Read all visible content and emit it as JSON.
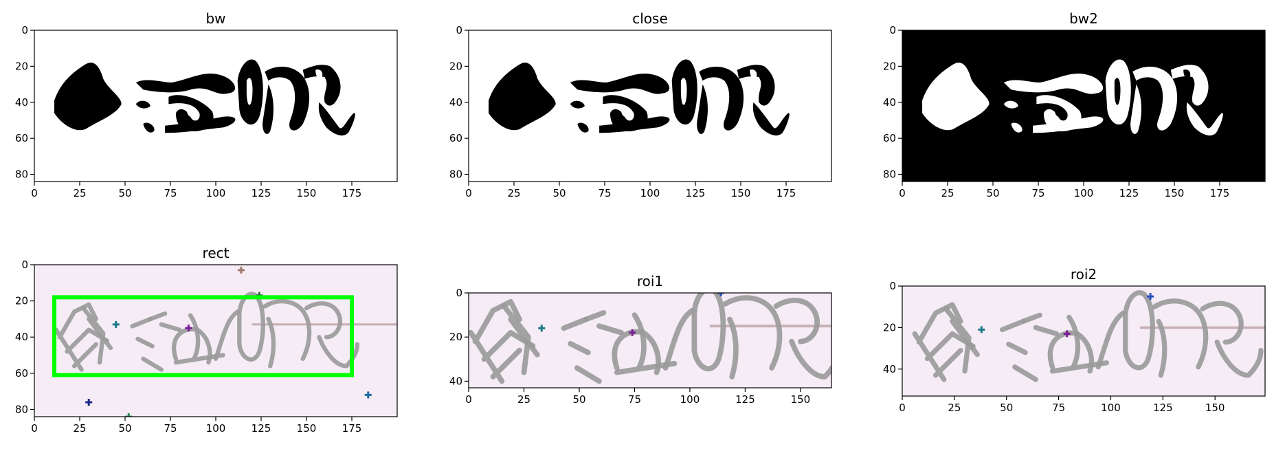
{
  "figure": {
    "background": "#ffffff"
  },
  "chart_data": [
    {
      "type": "image",
      "title": "bw",
      "colormap": "gray",
      "image_size": [
        200,
        84
      ],
      "xticks": [
        0,
        25,
        50,
        75,
        100,
        125,
        150,
        175
      ],
      "yticks": [
        0,
        20,
        40,
        60,
        80
      ],
      "xlim": [
        0,
        200
      ],
      "ylim": [
        84,
        0
      ],
      "content": "black handwritten-stroke blobs on white"
    },
    {
      "type": "image",
      "title": "close",
      "colormap": "gray",
      "image_size": [
        200,
        84
      ],
      "xticks": [
        0,
        25,
        50,
        75,
        100,
        125,
        150,
        175
      ],
      "yticks": [
        0,
        20,
        40,
        60,
        80
      ],
      "xlim": [
        0,
        200
      ],
      "ylim": [
        84,
        0
      ],
      "content": "morphologically closed black blobs on white"
    },
    {
      "type": "image",
      "title": "bw2",
      "colormap": "gray",
      "image_size": [
        200,
        84
      ],
      "xticks": [
        0,
        25,
        50,
        75,
        100,
        125,
        150,
        175
      ],
      "yticks": [
        0,
        20,
        40,
        60,
        80
      ],
      "xlim": [
        0,
        200
      ],
      "ylim": [
        84,
        0
      ],
      "content": "inverted: white blobs on black"
    },
    {
      "type": "image",
      "title": "rect",
      "image_size": [
        200,
        84
      ],
      "xticks": [
        0,
        25,
        50,
        75,
        100,
        125,
        150,
        175
      ],
      "yticks": [
        0,
        20,
        40,
        60,
        80
      ],
      "xlim": [
        0,
        200
      ],
      "ylim": [
        84,
        0
      ],
      "background_color": "#f5ecf6",
      "stroke_color": "#9a9a9a",
      "bounding_box": {
        "x0": 11,
        "y0": 18,
        "x1": 175,
        "y1": 61,
        "color": "#00ff00"
      },
      "noise_points": [
        {
          "x": 114,
          "y": 3,
          "color": "#a0786e"
        },
        {
          "x": 45,
          "y": 33,
          "color": "#1c7a8a"
        },
        {
          "x": 85,
          "y": 35,
          "color": "#7a1e96"
        },
        {
          "x": 124,
          "y": 17,
          "color": "#2a6a3a"
        },
        {
          "x": 30,
          "y": 76,
          "color": "#1a2a8a"
        },
        {
          "x": 184,
          "y": 72,
          "color": "#1a6aa0"
        },
        {
          "x": 52,
          "y": 84,
          "color": "#2a8a5a"
        }
      ]
    },
    {
      "type": "image",
      "title": "roi1",
      "image_size": [
        164,
        43
      ],
      "xticks": [
        0,
        25,
        50,
        75,
        100,
        125,
        150
      ],
      "yticks": [
        0,
        20,
        40
      ],
      "xlim": [
        0,
        164
      ],
      "ylim": [
        43,
        0
      ],
      "background_color": "#f5ecf6",
      "stroke_color": "#9a9a9a",
      "noise_points": [
        {
          "x": 114,
          "y": 0,
          "color": "#2a50c0"
        },
        {
          "x": 33,
          "y": 16,
          "color": "#1c7a8a"
        },
        {
          "x": 74,
          "y": 18,
          "color": "#7a1e96"
        }
      ]
    },
    {
      "type": "image",
      "title": "roi2",
      "image_size": [
        174,
        53
      ],
      "xticks": [
        0,
        25,
        50,
        75,
        100,
        125,
        150
      ],
      "yticks": [
        0,
        20,
        40
      ],
      "xlim": [
        0,
        174
      ],
      "ylim": [
        53,
        0
      ],
      "background_color": "#f5ecf6",
      "stroke_color": "#9a9a9a",
      "noise_points": [
        {
          "x": 119,
          "y": 5,
          "color": "#2a50c0"
        },
        {
          "x": 38,
          "y": 21,
          "color": "#1c7a8a"
        },
        {
          "x": 79,
          "y": 23,
          "color": "#7a1e96"
        }
      ]
    }
  ]
}
